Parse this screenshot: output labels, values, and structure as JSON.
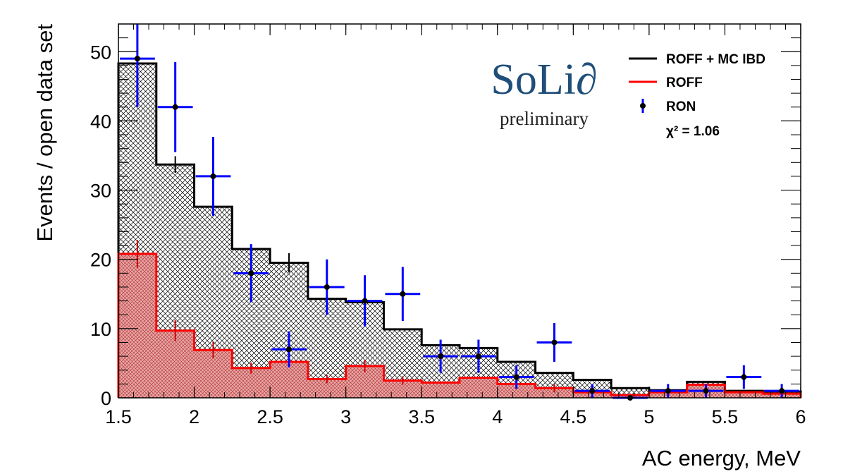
{
  "chart_data": {
    "type": "histogram",
    "xlabel": "AC energy, MeV",
    "ylabel": "Events / open data set",
    "xlim": [
      1.5,
      6.0
    ],
    "ylim": [
      0,
      54
    ],
    "x_ticks": [
      "1.5",
      "2",
      "2.5",
      "3",
      "3.5",
      "4",
      "4.5",
      "5",
      "5.5",
      "6"
    ],
    "y_ticks": [
      "0",
      "10",
      "20",
      "30",
      "40",
      "50"
    ],
    "bin_edges": [
      1.5,
      1.75,
      2.0,
      2.25,
      2.5,
      2.75,
      3.0,
      3.25,
      3.5,
      3.75,
      4.0,
      4.25,
      4.5,
      4.75,
      5.0,
      5.25,
      5.5,
      5.75,
      6.0
    ],
    "series": [
      {
        "name": "ROFF + MC IBD",
        "color": "#000000",
        "values": [
          48.3,
          33.7,
          27.6,
          21.5,
          19.5,
          14.3,
          13.8,
          9.9,
          7.6,
          7.2,
          5.2,
          3.6,
          2.6,
          1.4,
          1.1,
          2.3,
          1.0,
          0.9
        ],
        "errors": [
          0,
          1.2,
          0,
          0,
          1.4,
          0,
          0,
          0,
          0,
          0,
          0,
          0,
          0,
          0,
          0,
          0,
          0,
          0
        ]
      },
      {
        "name": "ROFF",
        "color": "#ff0000",
        "values": [
          20.8,
          9.7,
          6.9,
          4.3,
          5.2,
          2.7,
          4.6,
          2.5,
          2.2,
          2.9,
          2.0,
          1.4,
          0.8,
          0.4,
          0.8,
          1.9,
          0.8,
          0.6
        ],
        "errors": [
          2.0,
          1.5,
          1.2,
          0.8,
          0,
          0.6,
          0.9,
          0.6,
          0,
          0,
          0,
          0.6,
          0,
          0,
          0,
          0,
          0,
          0
        ]
      },
      {
        "name": "RON",
        "color": "#0000ff",
        "values": [
          49,
          42,
          32,
          18,
          7,
          16,
          14,
          15,
          6,
          6,
          3,
          8,
          1,
          0,
          1,
          1,
          3,
          1
        ],
        "errors": [
          7.0,
          6.5,
          5.7,
          4.2,
          2.6,
          4.0,
          3.7,
          3.9,
          2.4,
          2.4,
          1.7,
          2.8,
          1.0,
          0,
          1.0,
          1.0,
          1.7,
          1.0
        ]
      }
    ],
    "annotations": {
      "chi2": "χ² = 1.06",
      "logo": "SoLi∂",
      "logo_sub": "preliminary"
    },
    "legend": {
      "position": "top-right",
      "items": [
        "ROFF + MC IBD",
        "ROFF",
        "RON"
      ]
    }
  }
}
